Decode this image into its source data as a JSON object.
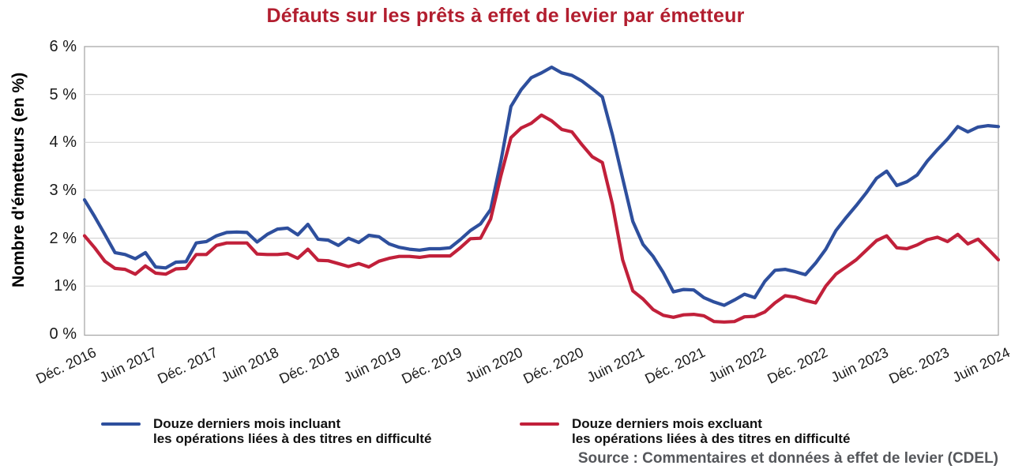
{
  "title": "Défauts sur les prêts à effet de levier par émetteur",
  "y_axis": {
    "label": "Nombre d'émetteurs (en %)",
    "tick_labels": [
      "6 %",
      "5 %",
      "4 %",
      "3 %",
      "2 %",
      "1%",
      "0 %"
    ],
    "tick_values": [
      6,
      5,
      4,
      3,
      2,
      1,
      0
    ]
  },
  "legend": [
    {
      "line1": "Douze derniers mois incluant",
      "line2": "les opérations liées à des titres en difficulté",
      "color": "#2e4f9d"
    },
    {
      "line1": "Douze derniers mois excluant",
      "line2": "les opérations liées à des titres en difficulté",
      "color": "#c1203a"
    }
  ],
  "source": "Source : Commentaires et données à effet de levier (CDEL)",
  "colors": {
    "title": "#b21e2f",
    "series_blue": "#2e4f9d",
    "series_red": "#c1203a",
    "gridline": "#d6d6d6",
    "frame": "#a9a9a9",
    "source_text": "#55575b",
    "tick_text": "#1a1a1a"
  },
  "chart_data": {
    "type": "line",
    "title": "Défauts sur les prêts à effet de levier par émetteur",
    "ylabel": "Nombre d'émetteurs (en %)",
    "ylim": [
      0,
      6
    ],
    "grid": "horizontal",
    "legend_position": "bottom",
    "x_unit": "mois (données mensuelles de Déc. 2016 à Juin 2024, indices 0 à 90)",
    "x_tick_labels": [
      "Déc. 2016",
      "Juin 2017",
      "Déc. 2017",
      "Juin 2018",
      "Déc. 2018",
      "Juin 2019",
      "Déc. 2019",
      "Juin 2020",
      "Déc. 2020",
      "Juin 2021",
      "Déc. 2021",
      "Juin 2022",
      "Déc. 2022",
      "Juin 2023",
      "Déc. 2023",
      "Juin 2024"
    ],
    "x_tick_month_indices": [
      0,
      6,
      12,
      18,
      24,
      30,
      36,
      42,
      48,
      54,
      60,
      66,
      72,
      78,
      84,
      90
    ],
    "series": [
      {
        "name": "Douze derniers mois incluant les opérations liées à des titres en difficulté",
        "color": "#2e4f9d",
        "values": [
          2.8,
          2.45,
          2.08,
          1.7,
          1.66,
          1.57,
          1.7,
          1.4,
          1.38,
          1.5,
          1.51,
          1.9,
          1.93,
          2.05,
          2.12,
          2.13,
          2.12,
          1.92,
          2.08,
          2.19,
          2.21,
          2.07,
          2.29,
          1.98,
          1.96,
          1.85,
          2.0,
          1.91,
          2.06,
          2.03,
          1.88,
          1.81,
          1.77,
          1.75,
          1.78,
          1.78,
          1.8,
          1.97,
          2.16,
          2.3,
          2.6,
          3.6,
          4.75,
          5.1,
          5.35,
          5.45,
          5.57,
          5.45,
          5.4,
          5.28,
          5.12,
          4.95,
          4.15,
          3.25,
          2.35,
          1.87,
          1.62,
          1.28,
          0.88,
          0.93,
          0.92,
          0.76,
          0.67,
          0.6,
          0.71,
          0.83,
          0.76,
          1.1,
          1.33,
          1.35,
          1.3,
          1.24,
          1.48,
          1.77,
          2.16,
          2.43,
          2.68,
          2.95,
          3.25,
          3.4,
          3.1,
          3.18,
          3.32,
          3.61,
          3.85,
          4.07,
          4.33,
          4.22,
          4.32,
          4.35,
          4.33
        ]
      },
      {
        "name": "Douze derniers mois excluant les opérations liées à des titres en difficulté",
        "color": "#c1203a",
        "values": [
          2.05,
          1.8,
          1.52,
          1.37,
          1.35,
          1.25,
          1.42,
          1.27,
          1.25,
          1.36,
          1.37,
          1.66,
          1.66,
          1.85,
          1.9,
          1.9,
          1.9,
          1.67,
          1.66,
          1.66,
          1.68,
          1.58,
          1.77,
          1.54,
          1.53,
          1.47,
          1.41,
          1.47,
          1.4,
          1.52,
          1.58,
          1.62,
          1.62,
          1.6,
          1.63,
          1.63,
          1.63,
          1.8,
          1.99,
          2.0,
          2.4,
          3.3,
          4.1,
          4.3,
          4.4,
          4.57,
          4.45,
          4.27,
          4.22,
          3.95,
          3.7,
          3.58,
          2.7,
          1.55,
          0.9,
          0.73,
          0.51,
          0.39,
          0.35,
          0.4,
          0.41,
          0.38,
          0.26,
          0.25,
          0.26,
          0.36,
          0.37,
          0.46,
          0.65,
          0.8,
          0.77,
          0.7,
          0.65,
          1.0,
          1.25,
          1.4,
          1.55,
          1.75,
          1.95,
          2.05,
          1.8,
          1.78,
          1.86,
          1.97,
          2.02,
          1.93,
          2.08,
          1.88,
          1.98,
          1.77,
          1.55
        ]
      }
    ]
  }
}
